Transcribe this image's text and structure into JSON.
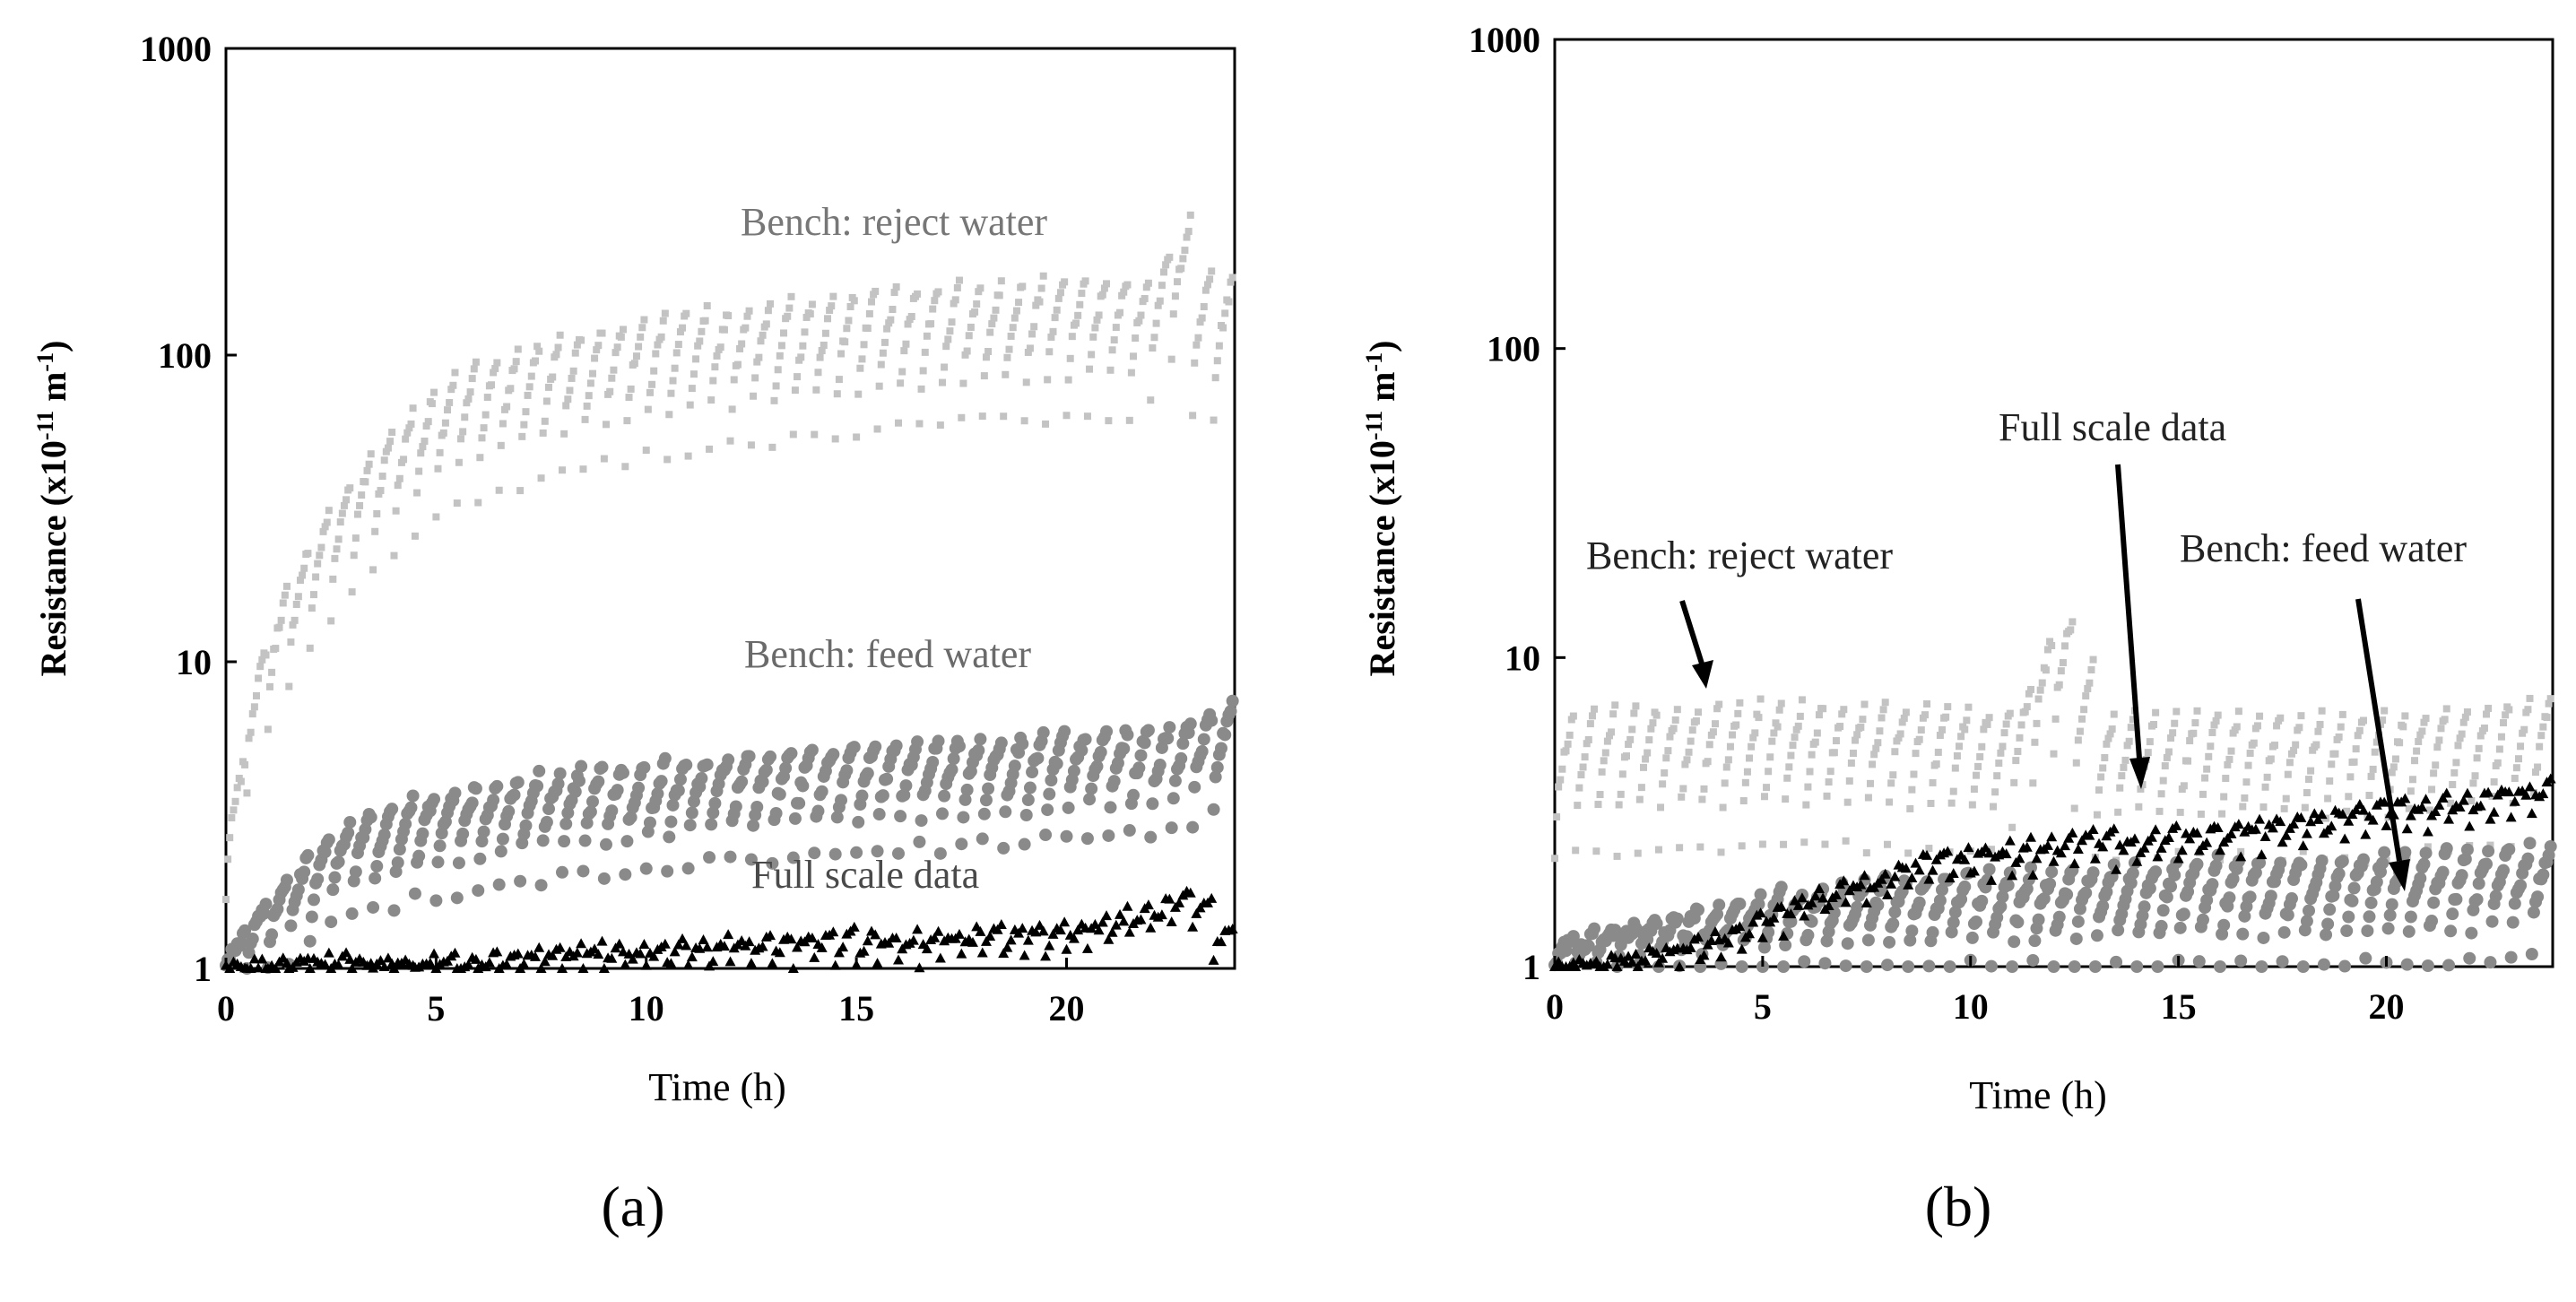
{
  "figure": {
    "captions": [
      "(a)",
      "(b)"
    ]
  },
  "colors": {
    "reject": "#c3c3c3",
    "feed": "#8a8a8a",
    "full": "#000000",
    "ann_a_reject": "#777777",
    "ann_a_feed": "#6a6a6a",
    "ann_a_full": "#4a4a4a",
    "ann_b": "#222222"
  },
  "chart_data": [
    {
      "id": "a",
      "type": "scatter",
      "caption": "(a)",
      "xlabel": "Time (h)",
      "ylabel": "Resistance (x10-11 m-1)",
      "ylabel_parts": {
        "main": "Resistance (x10",
        "exp1": "-11",
        "mid": " m",
        "exp2": "-1",
        "end": ")"
      },
      "xlim": [
        0,
        24
      ],
      "ylim": [
        1,
        1000
      ],
      "yscale": "log",
      "xticks": [
        0,
        5,
        10,
        15,
        20
      ],
      "yticks": [
        1,
        10,
        100,
        1000
      ],
      "series": [
        {
          "name": "Bench: reject water",
          "marker": "square",
          "color": "#c3c3c3",
          "x": [
            0,
            0.5,
            1,
            1.5,
            2,
            2.5,
            3,
            3.5,
            4,
            4.5,
            5,
            5.5,
            6,
            7,
            8,
            9,
            10,
            11,
            12,
            13,
            14,
            15,
            16,
            17,
            18,
            19,
            20,
            21,
            22,
            22.8,
            23.3,
            24
          ],
          "y": [
            1.5,
            8,
            14,
            20,
            26,
            35,
            42,
            52,
            60,
            70,
            80,
            88,
            95,
            105,
            115,
            125,
            132,
            138,
            142,
            148,
            152,
            158,
            162,
            168,
            172,
            175,
            176,
            178,
            180,
            280,
            175,
            175
          ]
        },
        {
          "name": "Bench: feed water",
          "marker": "circle",
          "color": "#8a8a8a",
          "x": [
            0,
            1,
            2,
            3,
            4,
            5,
            6,
            7,
            8,
            9,
            10,
            11,
            12,
            13,
            14,
            15,
            16,
            17,
            18,
            19,
            20,
            21,
            22,
            23,
            24
          ],
          "y": [
            1.1,
            1.8,
            2.5,
            3.2,
            3.5,
            3.8,
            4.0,
            4.2,
            4.4,
            4.5,
            4.6,
            4.8,
            5.0,
            5.1,
            5.2,
            5.3,
            5.4,
            5.5,
            5.6,
            5.7,
            5.8,
            5.9,
            6.0,
            6.5,
            7.5
          ]
        },
        {
          "name": "Full scale data",
          "marker": "triangle",
          "color": "#000000",
          "x": [
            0,
            2,
            4,
            6,
            8,
            10,
            12,
            14,
            16,
            18,
            20,
            21,
            22,
            23,
            24
          ],
          "y": [
            1.0,
            1.1,
            1.05,
            1.1,
            1.15,
            1.2,
            1.25,
            1.3,
            1.3,
            1.35,
            1.4,
            1.5,
            1.6,
            1.8,
            1.2
          ]
        }
      ],
      "annotations": [
        {
          "text": "Bench: reject water",
          "series": "reject"
        },
        {
          "text": "Bench: feed water",
          "series": "feed"
        },
        {
          "text": "Full scale data",
          "series": "full"
        }
      ]
    },
    {
      "id": "b",
      "type": "scatter",
      "caption": "(b)",
      "xlabel": "Time (h)",
      "ylabel": "Resistance (x10-11 m-1)",
      "ylabel_parts": {
        "main": "Resistance (x10",
        "exp1": "-11",
        "mid": " m",
        "exp2": "-1",
        "end": ")"
      },
      "xlim": [
        0,
        24
      ],
      "ylim": [
        1,
        1000
      ],
      "yscale": "log",
      "xticks": [
        0,
        5,
        10,
        15,
        20
      ],
      "yticks": [
        1,
        10,
        100,
        1000
      ],
      "series": [
        {
          "name": "Bench: reject water",
          "marker": "square",
          "color": "#c3c3c3",
          "x": [
            0,
            2,
            4,
            6,
            8,
            10,
            11,
            12,
            12.4,
            13,
            14,
            16,
            18,
            20,
            22,
            24
          ],
          "y": [
            6.5,
            6.8,
            7.0,
            7.0,
            7.0,
            6.8,
            6.5,
            13.0,
            14.0,
            6.5,
            6.5,
            6.5,
            6.5,
            6.5,
            6.8,
            7.5
          ]
        },
        {
          "name": "Bench: feed water",
          "marker": "circle",
          "color": "#8a8a8a",
          "x": [
            0,
            2,
            4,
            6,
            8,
            10,
            12,
            14,
            16,
            18,
            20,
            22,
            24
          ],
          "y": [
            1.2,
            1.4,
            1.6,
            1.8,
            1.9,
            2.0,
            2.0,
            2.1,
            2.2,
            2.2,
            2.3,
            2.3,
            2.5
          ]
        },
        {
          "name": "Full scale data",
          "marker": "triangle",
          "color": "#000000",
          "x": [
            0,
            1,
            2,
            3,
            4,
            5,
            6,
            7,
            8,
            9,
            10,
            11,
            12,
            13,
            14,
            15,
            16,
            17,
            18,
            19,
            20,
            21,
            22,
            23,
            24
          ],
          "y": [
            1.0,
            1.05,
            1.1,
            1.2,
            1.3,
            1.5,
            1.7,
            1.9,
            2.1,
            2.3,
            2.4,
            2.5,
            2.6,
            2.7,
            2.7,
            2.8,
            2.9,
            3.0,
            3.1,
            3.3,
            3.4,
            3.5,
            3.6,
            3.8,
            4.0
          ]
        }
      ],
      "annotations": [
        {
          "text": "Bench: reject water",
          "series": "reject",
          "arrow_to": {
            "x": 3.5,
            "y": 7.5
          }
        },
        {
          "text": "Full scale data",
          "series": "full",
          "arrow_to": {
            "x": 13.9,
            "y": 3.5
          }
        },
        {
          "text": "Bench: feed water",
          "series": "feed",
          "arrow_to": {
            "x": 20.0,
            "y": 1.7
          }
        }
      ]
    }
  ]
}
